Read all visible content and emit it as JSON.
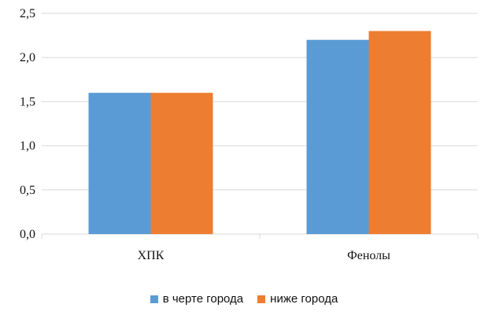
{
  "chart_data": {
    "type": "bar",
    "categories": [
      "ХПК",
      "Фенолы"
    ],
    "series": [
      {
        "name": "в черте города",
        "values": [
          1.6,
          2.2
        ],
        "color": "#5B9BD5"
      },
      {
        "name": "ниже города",
        "values": [
          1.6,
          2.3
        ],
        "color": "#ED7D31"
      }
    ],
    "y_ticks": [
      "0,0",
      "0,5",
      "1,0",
      "1,5",
      "2,0",
      "2,5"
    ],
    "ylim": [
      0,
      2.5
    ],
    "grid": true,
    "legend_position": "bottom"
  }
}
